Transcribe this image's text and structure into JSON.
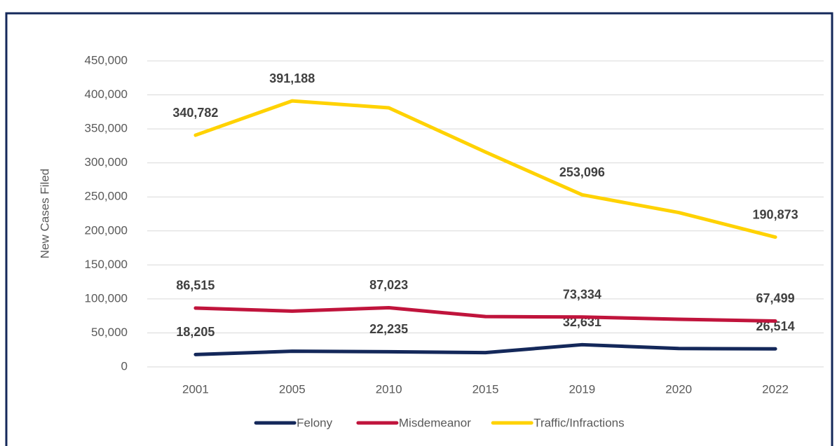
{
  "chart_data": {
    "type": "line",
    "y_label": "New Cases Filed",
    "categories": [
      "2001",
      "2005",
      "2010",
      "2015",
      "2019",
      "2020",
      "2022"
    ],
    "series": [
      {
        "name": "Felony",
        "color": "#14285a",
        "values": [
          18205,
          23000,
          22235,
          21000,
          32631,
          27000,
          26514
        ],
        "value_labels": [
          "18,205",
          null,
          "22,235",
          null,
          "32,631",
          null,
          "26,514"
        ]
      },
      {
        "name": "Misdemeanor",
        "color": "#c0143c",
        "values": [
          86515,
          82000,
          87023,
          74000,
          73334,
          70000,
          67499
        ],
        "value_labels": [
          "86,515",
          null,
          "87,023",
          null,
          "73,334",
          null,
          "67,499"
        ]
      },
      {
        "name": "Traffic/Infractions",
        "color": "#ffd200",
        "values": [
          340782,
          391188,
          381000,
          316000,
          253096,
          227000,
          190873
        ],
        "value_labels": [
          "340,782",
          "391,188",
          null,
          null,
          "253,096",
          null,
          "190,873"
        ]
      }
    ],
    "ylim": [
      0,
      450000
    ],
    "yticks": [
      0,
      {
        "value": 50000,
        "label": "50,000"
      },
      {
        "value": 100000,
        "label": "100,000"
      },
      {
        "value": 150000,
        "label": "150,000"
      },
      {
        "value": 200000,
        "label": "200,000"
      },
      {
        "value": 250000,
        "label": "250,000"
      },
      {
        "value": 300000,
        "label": "300,000"
      },
      {
        "value": 350000,
        "label": "350,000"
      },
      {
        "value": 400000,
        "label": "400,000"
      },
      {
        "value": 450000,
        "label": "450,000"
      }
    ],
    "grid": true,
    "legend": "bottom"
  }
}
